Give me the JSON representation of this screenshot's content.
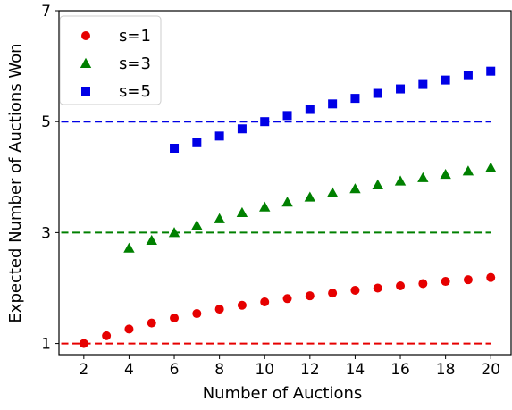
{
  "chart_data": {
    "type": "scatter",
    "xlabel": "Number of Auctions",
    "ylabel": "Expected Number of Auctions Won",
    "xlim": [
      0.9,
      20.9
    ],
    "ylim": [
      0.8,
      7
    ],
    "xticks": [
      2,
      4,
      6,
      8,
      10,
      12,
      14,
      16,
      18,
      20
    ],
    "yticks": [
      1,
      3,
      5,
      7
    ],
    "grid": false,
    "legend_position": "top-left",
    "series": [
      {
        "name": "s=1",
        "color": "#e60000",
        "marker": "circle",
        "reference_line": 1,
        "x": [
          2,
          3,
          4,
          5,
          6,
          7,
          8,
          9,
          10,
          11,
          12,
          13,
          14,
          15,
          16,
          17,
          18,
          19,
          20
        ],
        "y": [
          1.0,
          1.14,
          1.26,
          1.37,
          1.46,
          1.54,
          1.62,
          1.69,
          1.75,
          1.81,
          1.86,
          1.91,
          1.96,
          2.0,
          2.04,
          2.08,
          2.12,
          2.15,
          2.19
        ]
      },
      {
        "name": "s=3",
        "color": "#008000",
        "marker": "triangle",
        "reference_line": 3,
        "x": [
          4,
          5,
          6,
          7,
          8,
          9,
          10,
          11,
          12,
          13,
          14,
          15,
          16,
          17,
          18,
          19,
          20
        ],
        "y": [
          2.72,
          2.86,
          3.0,
          3.13,
          3.25,
          3.36,
          3.46,
          3.55,
          3.64,
          3.72,
          3.79,
          3.86,
          3.93,
          3.99,
          4.05,
          4.11,
          4.17
        ]
      },
      {
        "name": "s=5",
        "color": "#0000e6",
        "marker": "square",
        "reference_line": 5,
        "x": [
          6,
          7,
          8,
          9,
          10,
          11,
          12,
          13,
          14,
          15,
          16,
          17,
          18,
          19,
          20
        ],
        "y": [
          4.52,
          4.62,
          4.74,
          4.87,
          5.0,
          5.11,
          5.22,
          5.32,
          5.42,
          5.51,
          5.59,
          5.67,
          5.75,
          5.83,
          5.91
        ]
      }
    ]
  }
}
